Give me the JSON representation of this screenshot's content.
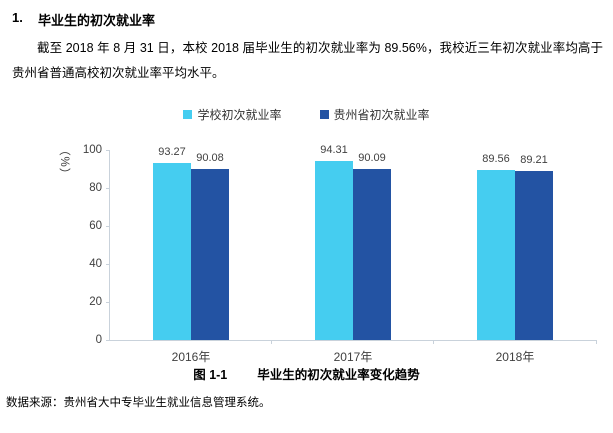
{
  "page": {
    "heading_number": "1.",
    "heading_text": "毕业生的初次就业率",
    "paragraph": "截至 2018 年 8 月 31 日，本校 2018 届毕业生的初次就业率为 89.56%，我校近三年初次就业率均高于贵州省普通高校初次就业率平均水平。",
    "caption_label": "图 1-1",
    "caption_text": "毕业生的初次就业率变化趋势",
    "source_note": "数据来源：贵州省大中专毕业生就业信息管理系统。"
  },
  "chart_data": {
    "type": "bar",
    "categories": [
      "2016年",
      "2017年",
      "2018年"
    ],
    "series": [
      {
        "name": "学校初次就业率",
        "color": "#45CDF0",
        "values": [
          93.27,
          94.31,
          89.56
        ]
      },
      {
        "name": "贵州省初次就业率",
        "color": "#2353A3",
        "values": [
          90.08,
          90.09,
          89.21
        ]
      }
    ],
    "title": "",
    "xlabel": "",
    "ylabel": "（%）",
    "ylim": [
      0,
      100
    ],
    "yticks": [
      0,
      20,
      40,
      60,
      80,
      100
    ],
    "grid": false,
    "legend_position": "top",
    "value_labels": true,
    "axis_color": "#C9D2DB"
  }
}
